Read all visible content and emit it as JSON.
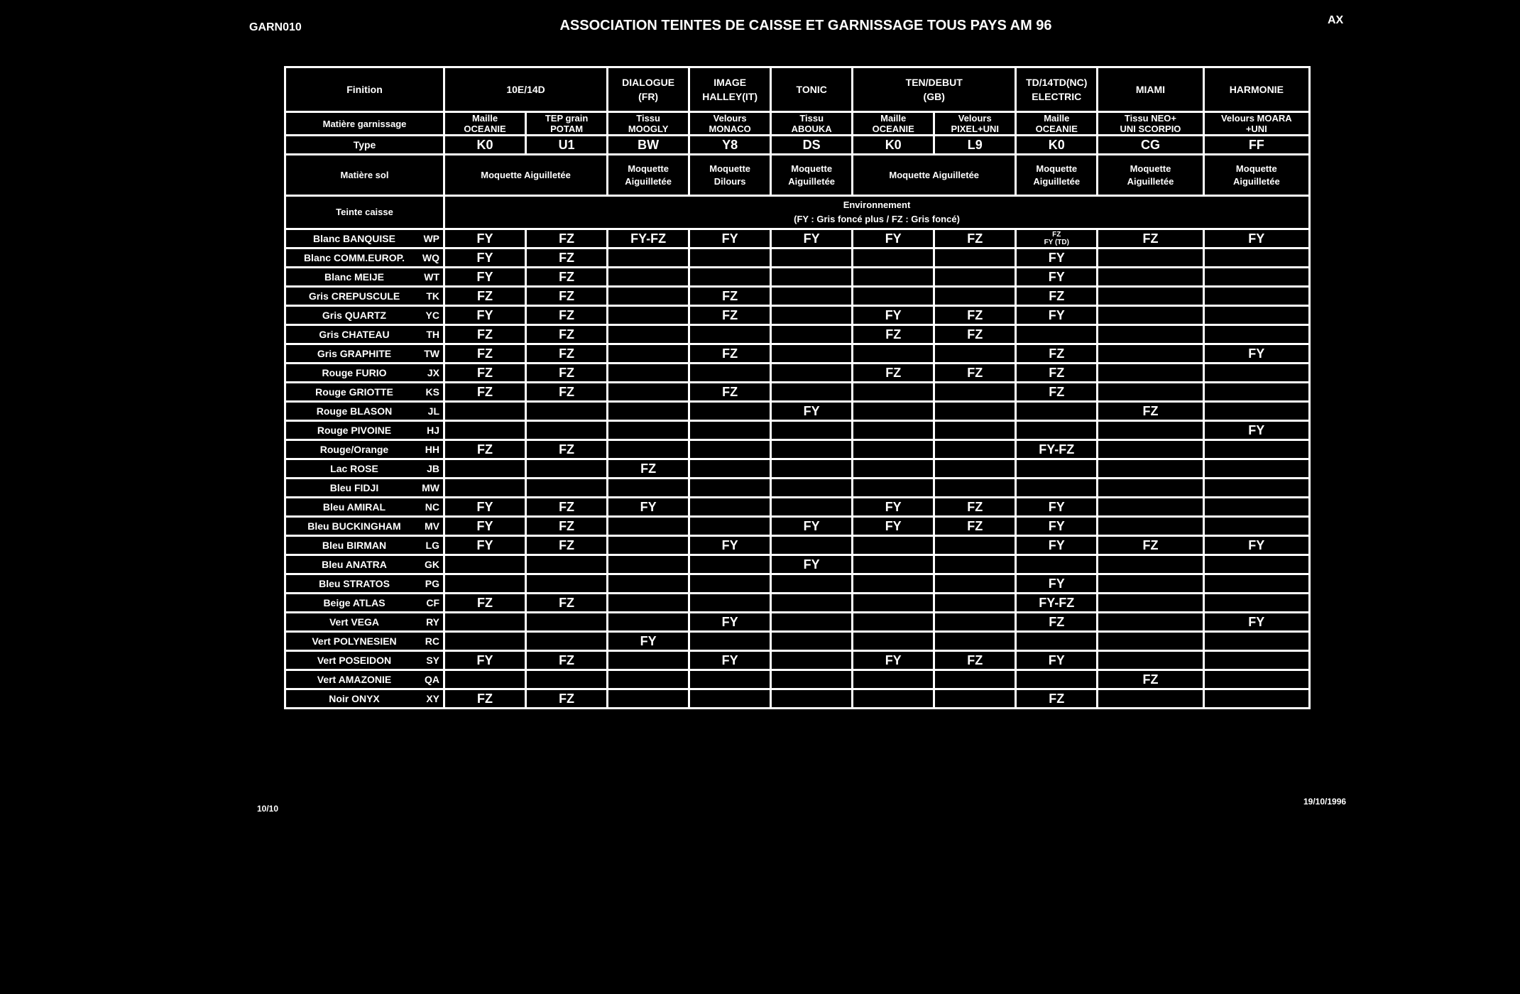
{
  "header": {
    "code": "GARN010",
    "title": "ASSOCIATION TEINTES DE CAISSE ET GARNISSAGE TOUS PAYS  AM 96",
    "corner": "AX"
  },
  "footer": {
    "page": "10/10",
    "date": "19/10/1996"
  },
  "labels": {
    "finition": "Finition",
    "matiere_garnissage": "Matière garnissage",
    "type": "Type",
    "matiere_sol": "Matière sol",
    "teinte_caisse": "Teinte  caisse",
    "environnement": "Environnement",
    "env_legend": "(FY : Gris foncé plus / FZ : Gris foncé)"
  },
  "finitions": [
    {
      "name": "10E/14D"
    },
    {
      "name": "DIALOGUE",
      "sub": "(FR)"
    },
    {
      "name": "IMAGE",
      "sub": "HALLEY(IT)"
    },
    {
      "name": "TONIC"
    },
    {
      "name": "TEN/DEBUT",
      "sub": "(GB)"
    },
    {
      "name": "TD/14TD(NC)",
      "sub": "ELECTRIC"
    },
    {
      "name": "MIAMI"
    },
    {
      "name": "HARMONIE"
    }
  ],
  "garnissages": [
    {
      "l1": "Maille",
      "l2": "OCEANIE"
    },
    {
      "l1": "TEP grain",
      "l2": "POTAM"
    },
    {
      "l1": "Tissu",
      "l2": "MOOGLY"
    },
    {
      "l1": "Velours",
      "l2": "MONACO"
    },
    {
      "l1": "Tissu",
      "l2": "ABOUKA"
    },
    {
      "l1": "Maille",
      "l2": "OCEANIE"
    },
    {
      "l1": "Velours",
      "l2": "PIXEL+UNI"
    },
    {
      "l1": "Maille",
      "l2": "OCEANIE"
    },
    {
      "l1": "Tissu NEO+",
      "l2": "UNI SCORPIO"
    },
    {
      "l1": "Velours MOARA",
      "l2": "+UNI"
    }
  ],
  "types": [
    "K0",
    "U1",
    "BW",
    "Y8",
    "DS",
    "K0",
    "L9",
    "K0",
    "CG",
    "FF"
  ],
  "sols": [
    {
      "l1": "Moquette Aiguilletée"
    },
    {
      "l1": "Moquette",
      "l2": "Aiguilletée"
    },
    {
      "l1": "Moquette",
      "l2": "Dilours"
    },
    {
      "l1": "Moquette",
      "l2": "Aiguilletée"
    },
    {
      "l1": "Moquette Aiguilletée"
    },
    {
      "l1": "Moquette",
      "l2": "Aiguilletée"
    },
    {
      "l1": "Moquette",
      "l2": "Aiguilletée"
    },
    {
      "l1": "Moquette",
      "l2": "Aiguilletée"
    }
  ],
  "rows": [
    {
      "name": "Blanc BANQUISE",
      "code": "WP",
      "cells": [
        "FY",
        "FZ",
        "FY-FZ",
        "FY",
        "FY",
        "FY",
        "FZ",
        {
          "small": "FZ",
          "small2": "FY (TD)"
        },
        "FZ",
        "FY"
      ]
    },
    {
      "name": "Blanc COMM.EUROP.",
      "code": "WQ",
      "cells": [
        "FY",
        "FZ",
        "",
        "",
        "",
        "",
        "",
        "FY",
        "",
        ""
      ]
    },
    {
      "name": "Blanc MEIJE",
      "code": "WT",
      "cells": [
        "FY",
        "FZ",
        "",
        "",
        "",
        "",
        "",
        "FY",
        "",
        ""
      ]
    },
    {
      "name": "Gris CREPUSCULE",
      "code": "TK",
      "cells": [
        "FZ",
        "FZ",
        "",
        "FZ",
        "",
        "",
        "",
        "FZ",
        "",
        ""
      ]
    },
    {
      "name": "Gris QUARTZ",
      "code": "YC",
      "cells": [
        "FY",
        "FZ",
        "",
        "FZ",
        "",
        "FY",
        "FZ",
        "FY",
        "",
        ""
      ]
    },
    {
      "name": "Gris CHATEAU",
      "code": "TH",
      "cells": [
        "FZ",
        "FZ",
        "",
        "",
        "",
        "FZ",
        "FZ",
        "",
        "",
        ""
      ]
    },
    {
      "name": "Gris GRAPHITE",
      "code": "TW",
      "cells": [
        "FZ",
        "FZ",
        "",
        "FZ",
        "",
        "",
        "",
        "FZ",
        "",
        "FY"
      ]
    },
    {
      "name": "Rouge FURIO",
      "code": "JX",
      "cells": [
        "FZ",
        "FZ",
        "",
        "",
        "",
        "FZ",
        "FZ",
        "FZ",
        "",
        ""
      ]
    },
    {
      "name": "Rouge GRIOTTE",
      "code": "KS",
      "cells": [
        "FZ",
        "FZ",
        "",
        "FZ",
        "",
        "",
        "",
        "FZ",
        "",
        ""
      ]
    },
    {
      "name": "Rouge BLASON",
      "code": "JL",
      "cells": [
        "",
        "",
        "",
        "",
        "FY",
        "",
        "",
        "",
        "FZ",
        ""
      ]
    },
    {
      "name": "Rouge PIVOINE",
      "code": "HJ",
      "cells": [
        "",
        "",
        "",
        "",
        "",
        "",
        "",
        "",
        "",
        "FY"
      ]
    },
    {
      "name": "Rouge/Orange",
      "code": "HH",
      "cells": [
        "FZ",
        "FZ",
        "",
        "",
        "",
        "",
        "",
        "FY-FZ",
        "",
        ""
      ]
    },
    {
      "name": "Lac ROSE",
      "code": "JB",
      "cells": [
        "",
        "",
        "FZ",
        "",
        "",
        "",
        "",
        "",
        "",
        ""
      ]
    },
    {
      "name": "Bleu FIDJI",
      "code": "MW",
      "cells": [
        "",
        "",
        "",
        "",
        "",
        "",
        "",
        "",
        "",
        ""
      ]
    },
    {
      "name": "Bleu AMIRAL",
      "code": "NC",
      "cells": [
        "FY",
        "FZ",
        "FY",
        "",
        "",
        "FY",
        "FZ",
        "FY",
        "",
        ""
      ]
    },
    {
      "name": "Bleu BUCKINGHAM",
      "code": "MV",
      "cells": [
        "FY",
        "FZ",
        "",
        "",
        "FY",
        "FY",
        "FZ",
        "FY",
        "",
        ""
      ]
    },
    {
      "name": "Bleu BIRMAN",
      "code": "LG",
      "cells": [
        "FY",
        "FZ",
        "",
        "FY",
        "",
        "",
        "",
        "FY",
        "FZ",
        "FY"
      ]
    },
    {
      "name": "Bleu ANATRA",
      "code": "GK",
      "cells": [
        "",
        "",
        "",
        "",
        "FY",
        "",
        "",
        "",
        "",
        ""
      ]
    },
    {
      "name": "Bleu STRATOS",
      "code": "PG",
      "cells": [
        "",
        "",
        "",
        "",
        "",
        "",
        "",
        "FY",
        "",
        ""
      ]
    },
    {
      "name": "Beige ATLAS",
      "code": "CF",
      "cells": [
        "FZ",
        "FZ",
        "",
        "",
        "",
        "",
        "",
        "FY-FZ",
        "",
        ""
      ]
    },
    {
      "name": "Vert VEGA",
      "code": "RY",
      "cells": [
        "",
        "",
        "",
        "FY",
        "",
        "",
        "",
        "FZ",
        "",
        "FY"
      ]
    },
    {
      "name": "Vert POLYNESIEN",
      "code": "RC",
      "cells": [
        "",
        "",
        "FY",
        "",
        "",
        "",
        "",
        "",
        "",
        ""
      ]
    },
    {
      "name": "Vert POSEIDON",
      "code": "SY",
      "cells": [
        "FY",
        "FZ",
        "",
        "FY",
        "",
        "FY",
        "FZ",
        "FY",
        "",
        ""
      ]
    },
    {
      "name": "Vert AMAZONIE",
      "code": "QA",
      "cells": [
        "",
        "",
        "",
        "",
        "",
        "",
        "",
        "",
        "FZ",
        ""
      ]
    },
    {
      "name": "Noir ONYX",
      "code": "XY",
      "cells": [
        "FZ",
        "FZ",
        "",
        "",
        "",
        "",
        "",
        "FZ",
        "",
        ""
      ]
    }
  ]
}
